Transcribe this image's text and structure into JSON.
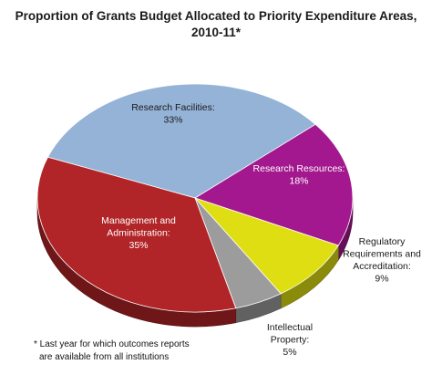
{
  "chart_data": {
    "type": "pie",
    "title_lines": [
      "Proportion of Grants Budget Allocated to Priority Expenditure Areas,",
      "2010-11*"
    ],
    "slices": [
      {
        "label_lines": [
          "Research Facilities:",
          "33%"
        ],
        "value": 33,
        "color": "#95b3d7"
      },
      {
        "label_lines": [
          "Research Resources:",
          "18%"
        ],
        "value": 18,
        "color": "#a3188e"
      },
      {
        "label_lines": [
          "Regulatory",
          "Requirements and",
          "Accreditation:",
          "9%"
        ],
        "value": 9,
        "color": "#dede12"
      },
      {
        "label_lines": [
          "Intellectual",
          "Property:",
          "5%"
        ],
        "value": 5,
        "color": "#9c9c9c"
      },
      {
        "label_lines": [
          "Management and",
          "Administration:",
          "35%"
        ],
        "value": 35,
        "color": "#b12427"
      }
    ],
    "footnote_lines": [
      "* Last year for which outcomes  reports",
      "are available from all institutions"
    ]
  }
}
